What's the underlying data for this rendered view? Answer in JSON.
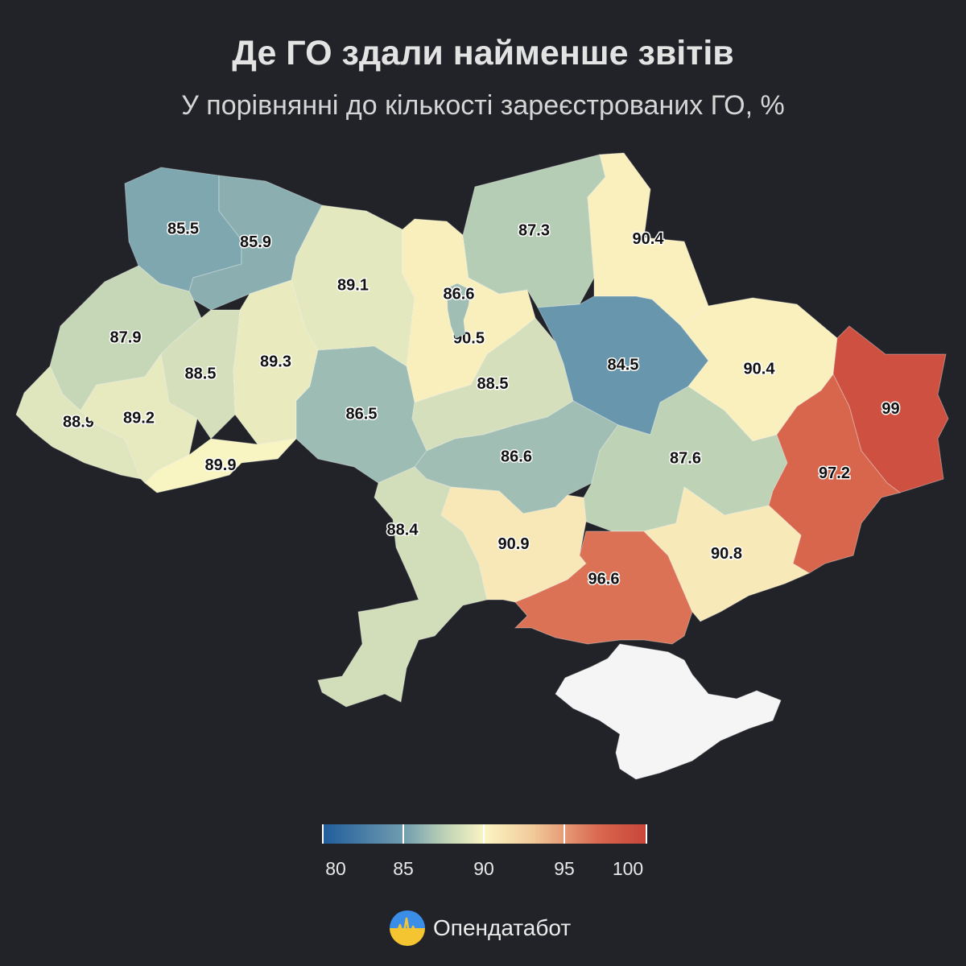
{
  "header": {
    "title": "Де ГО здали найменше звітів",
    "subtitle": "У порівнянні до кількості зареєстрованих ГО, %"
  },
  "map": {
    "regions": [
      {
        "name": "Волинська",
        "value": 85.5,
        "label": "85.5"
      },
      {
        "name": "Рівненська",
        "value": 85.9,
        "label": "85.9"
      },
      {
        "name": "Житомирська",
        "value": 89.1,
        "label": "89.1"
      },
      {
        "name": "Київська",
        "value": 90.5,
        "label": "90.5"
      },
      {
        "name": "м. Київ",
        "value": 86.6,
        "label": "86.6"
      },
      {
        "name": "Чернігівська",
        "value": 87.3,
        "label": "87.3"
      },
      {
        "name": "Сумська",
        "value": 90.4,
        "label": "90.4"
      },
      {
        "name": "Львівська",
        "value": 87.9,
        "label": "87.9"
      },
      {
        "name": "Тернопільська",
        "value": 88.5,
        "label": "88.5"
      },
      {
        "name": "Хмельницька",
        "value": 89.3,
        "label": "89.3"
      },
      {
        "name": "Полтавська",
        "value": 84.5,
        "label": "84.5"
      },
      {
        "name": "Харківська",
        "value": 90.4,
        "label": "90.4"
      },
      {
        "name": "Луганська",
        "value": 99,
        "label": "99"
      },
      {
        "name": "Закарпатська",
        "value": 88.9,
        "label": "88.9"
      },
      {
        "name": "Івано-Франківська",
        "value": 89.2,
        "label": "89.2"
      },
      {
        "name": "Чернівецька",
        "value": 89.9,
        "label": "89.9"
      },
      {
        "name": "Вінницька",
        "value": 86.5,
        "label": "86.5"
      },
      {
        "name": "Черкаська",
        "value": 88.5,
        "label": "88.5"
      },
      {
        "name": "Кіровоградська",
        "value": 86.6,
        "label": "86.6"
      },
      {
        "name": "Дніпропетровська",
        "value": 87.6,
        "label": "87.6"
      },
      {
        "name": "Донецька",
        "value": 97.2,
        "label": "97.2"
      },
      {
        "name": "Одеська",
        "value": 88.4,
        "label": "88.4"
      },
      {
        "name": "Миколаївська",
        "value": 90.9,
        "label": "90.9"
      },
      {
        "name": "Херсонська",
        "value": 96.6,
        "label": "96.6"
      },
      {
        "name": "Запорізька",
        "value": 90.8,
        "label": "90.8"
      },
      {
        "name": "Крим",
        "value": null,
        "label": ""
      }
    ]
  },
  "legend": {
    "ticks": [
      "80",
      "85",
      "90",
      "95",
      "100"
    ],
    "min": 80,
    "max": 100
  },
  "brand": {
    "name": "Опендатабот"
  },
  "colors": {
    "background": "#212328",
    "crimea": "#f5f5f5",
    "scale": [
      "#1f5c9b",
      "#6f9caf",
      "#b9cfb5",
      "#fbf6c3",
      "#f1c99a",
      "#d9684e",
      "#c8443a"
    ]
  }
}
